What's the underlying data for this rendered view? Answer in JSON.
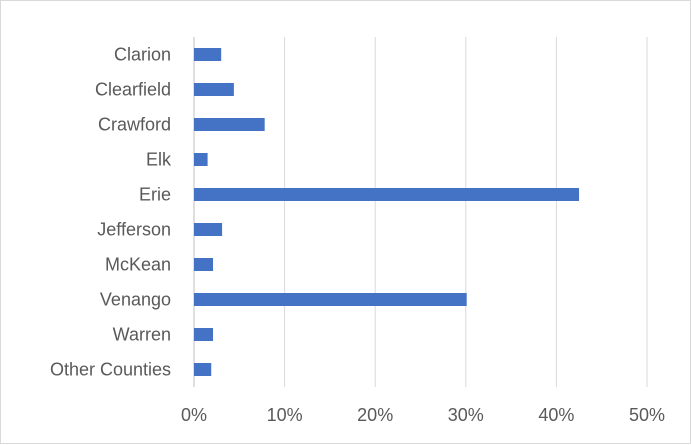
{
  "chart_data": {
    "type": "bar",
    "orientation": "horizontal",
    "categories": [
      "Clarion",
      "Clearfield",
      "Crawford",
      "Elk",
      "Erie",
      "Jefferson",
      "McKean",
      "Venango",
      "Warren",
      "Other Counties"
    ],
    "values": [
      3.0,
      4.4,
      7.8,
      1.5,
      42.5,
      3.1,
      2.1,
      30.1,
      2.1,
      1.9
    ],
    "xlim": [
      0,
      50
    ],
    "x_ticks": [
      0,
      10,
      20,
      30,
      40,
      50
    ],
    "x_tick_labels": [
      "0%",
      "10%",
      "20%",
      "30%",
      "40%",
      "50%"
    ],
    "bar_color": "#4472c4",
    "grid": true,
    "legend": "none"
  }
}
